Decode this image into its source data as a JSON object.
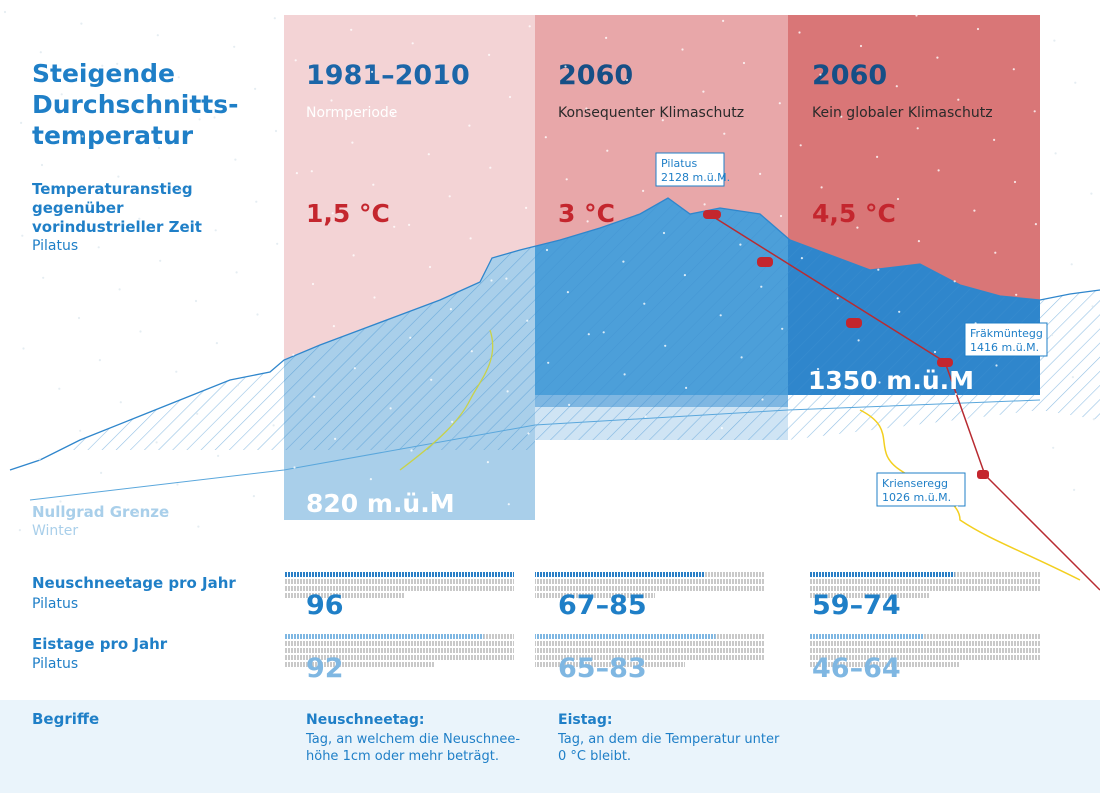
{
  "title": [
    "Steigende",
    "Durchschnitts-",
    "temperatur"
  ],
  "subtitle": [
    "Temperaturanstieg",
    "gegenüber",
    "vorindustrieller Zeit"
  ],
  "location": "Pilatus",
  "zero_line": {
    "label": "Nullgrad Grenze",
    "season": "Winter"
  },
  "periods": [
    {
      "year": "1981–2010",
      "label": "Normperiode",
      "temp": "1,5 °C",
      "zero_altitude": "820 m.ü.M",
      "snow_days": "96",
      "ice_days": "92"
    },
    {
      "year": "2060",
      "label": "Konsequenter Klimaschutz",
      "temp": "3 °C",
      "zero_altitude": "1350 m.ü.M",
      "snow_days": "67–85",
      "ice_days": "65–83"
    },
    {
      "year": "2060",
      "label": "Kein globaler Klimaschutz",
      "temp": "4,5 °C",
      "snow_days": "59–74",
      "ice_days": "46–64"
    }
  ],
  "stations": [
    {
      "name": "Pilatus",
      "altitude": "2128 m.ü.M."
    },
    {
      "name": "Fräkmüntegg",
      "altitude": "1416 m.ü.M."
    },
    {
      "name": "Krienseregg",
      "altitude": "1026 m.ü.M."
    }
  ],
  "rows": [
    {
      "label": "Neuschneetage pro Jahr",
      "location": "Pilatus"
    },
    {
      "label": "Eistage pro Jahr",
      "location": "Pilatus"
    }
  ],
  "glossary": {
    "title": "Begriffe",
    "terms": [
      {
        "term": "Neuschneetag:",
        "definition": [
          "Tag, an welchem die Neuschnee-",
          "höhe 1cm oder mehr beträgt."
        ]
      },
      {
        "term": "Eistag:",
        "definition": [
          "Tag, an dem die Temperatur unter",
          "0 °C bleibt."
        ]
      }
    ]
  }
}
